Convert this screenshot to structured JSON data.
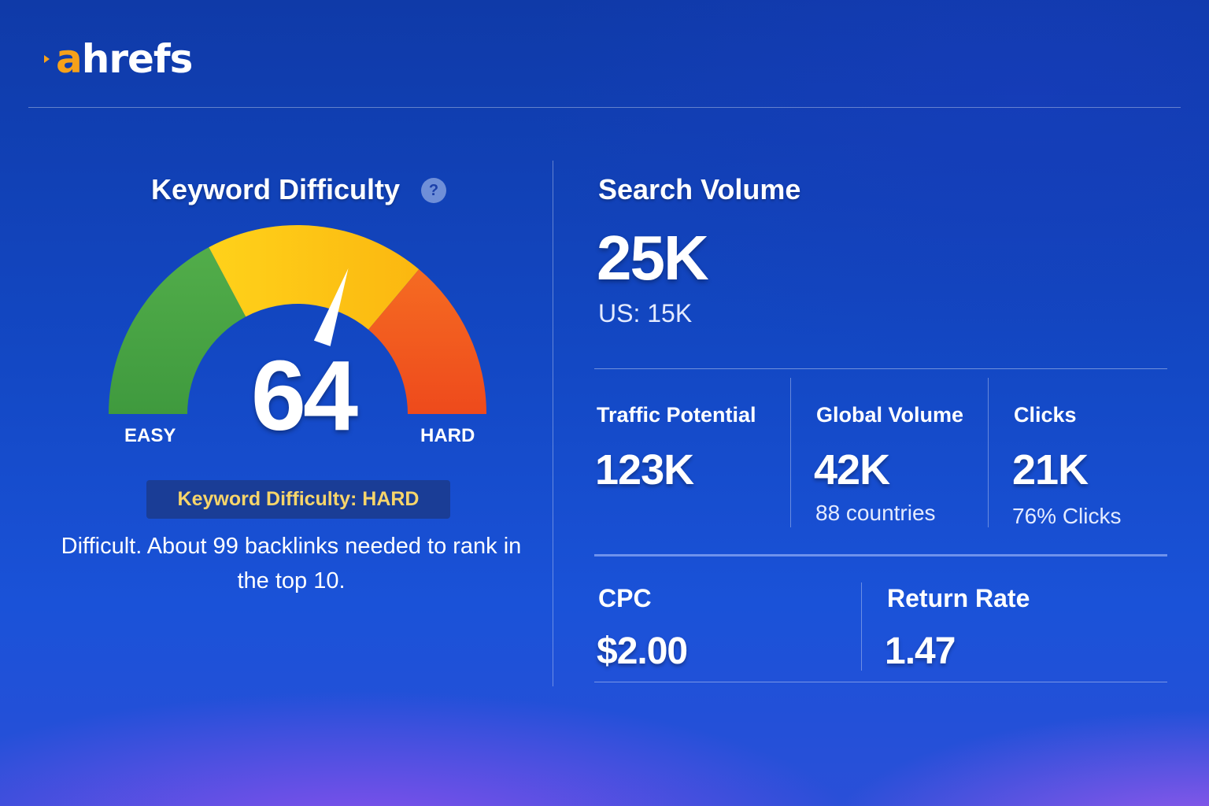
{
  "brand": {
    "logo_accent": "a",
    "logo_rest": "hrefs",
    "accent_color": "#f7a11a"
  },
  "keyword_difficulty": {
    "title": "Keyword Difficulty",
    "help_icon": "question-mark-icon",
    "help_glyph": "?",
    "value": "64",
    "score": 64,
    "scale_min": 0,
    "scale_max": 100,
    "easy_label": "EASY",
    "hard_label": "HARD",
    "badge_prefix": "Keyword Difficulty: ",
    "badge_level": "HARD",
    "description": "Difficult. About 99 backlinks needed to rank in the top 10.",
    "zone_colors": [
      "#4ea847",
      "#ffc813",
      "#f2591f"
    ]
  },
  "search_volume": {
    "label": "Search Volume",
    "value": "25K",
    "sub": "US: 15K"
  },
  "metrics": {
    "traffic_potential": {
      "label": "Traffic Potential",
      "value": "123K"
    },
    "global_volume": {
      "label": "Global Volume",
      "value": "42K",
      "sub": "88 countries"
    },
    "clicks": {
      "label": "Clicks",
      "value": "21K",
      "sub": "76% Clicks"
    },
    "cpc": {
      "label": "CPC",
      "value": "$2.00"
    },
    "return_rate": {
      "label": "Return Rate",
      "value": "1.47"
    }
  }
}
